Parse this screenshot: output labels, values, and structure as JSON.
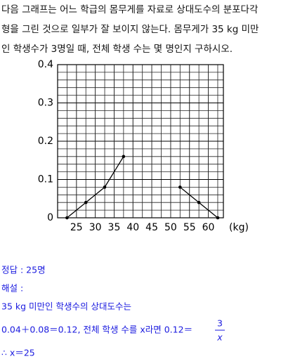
{
  "question": [
    "다음 그래프는 어느 학급의 몸무게를 자료로 상대도수의 분포다각",
    "형을 그린 것으로 일부가 잘 보이지 않는다. 몸무게가 35 kg 미만",
    "인 학생수가 3명일 때, 전체 학생 수는 몇 명인지 구하시오."
  ],
  "chart_data": {
    "type": "line",
    "x_label": "(kg)",
    "x": [
      22.5,
      27.5,
      32.5,
      37.5,
      42.5,
      47.5,
      52.5,
      57.5,
      62.5
    ],
    "values": [
      0,
      0.04,
      0.08,
      0.16,
      null,
      null,
      0.08,
      0.04,
      0
    ],
    "color": "#000000",
    "xlim": [
      20,
      64
    ],
    "xticks": [
      25,
      30,
      35,
      40,
      45,
      50,
      55,
      60
    ],
    "ylim": [
      0,
      0.4
    ],
    "yticks": [
      0,
      0.1,
      0.2,
      0.3,
      0.4
    ],
    "grid": true
  },
  "answer": {
    "result": "정답 : 25명",
    "heading": "해설 :",
    "lines": [
      "35 kg 미만인 학생수의 상대도수는",
      "0.04＋0.08＝0.12, 전체 학생 수를 x라면 0.12＝"
    ],
    "numerator": "3",
    "denominator": "x",
    "conclusion": "∴ x＝25"
  }
}
